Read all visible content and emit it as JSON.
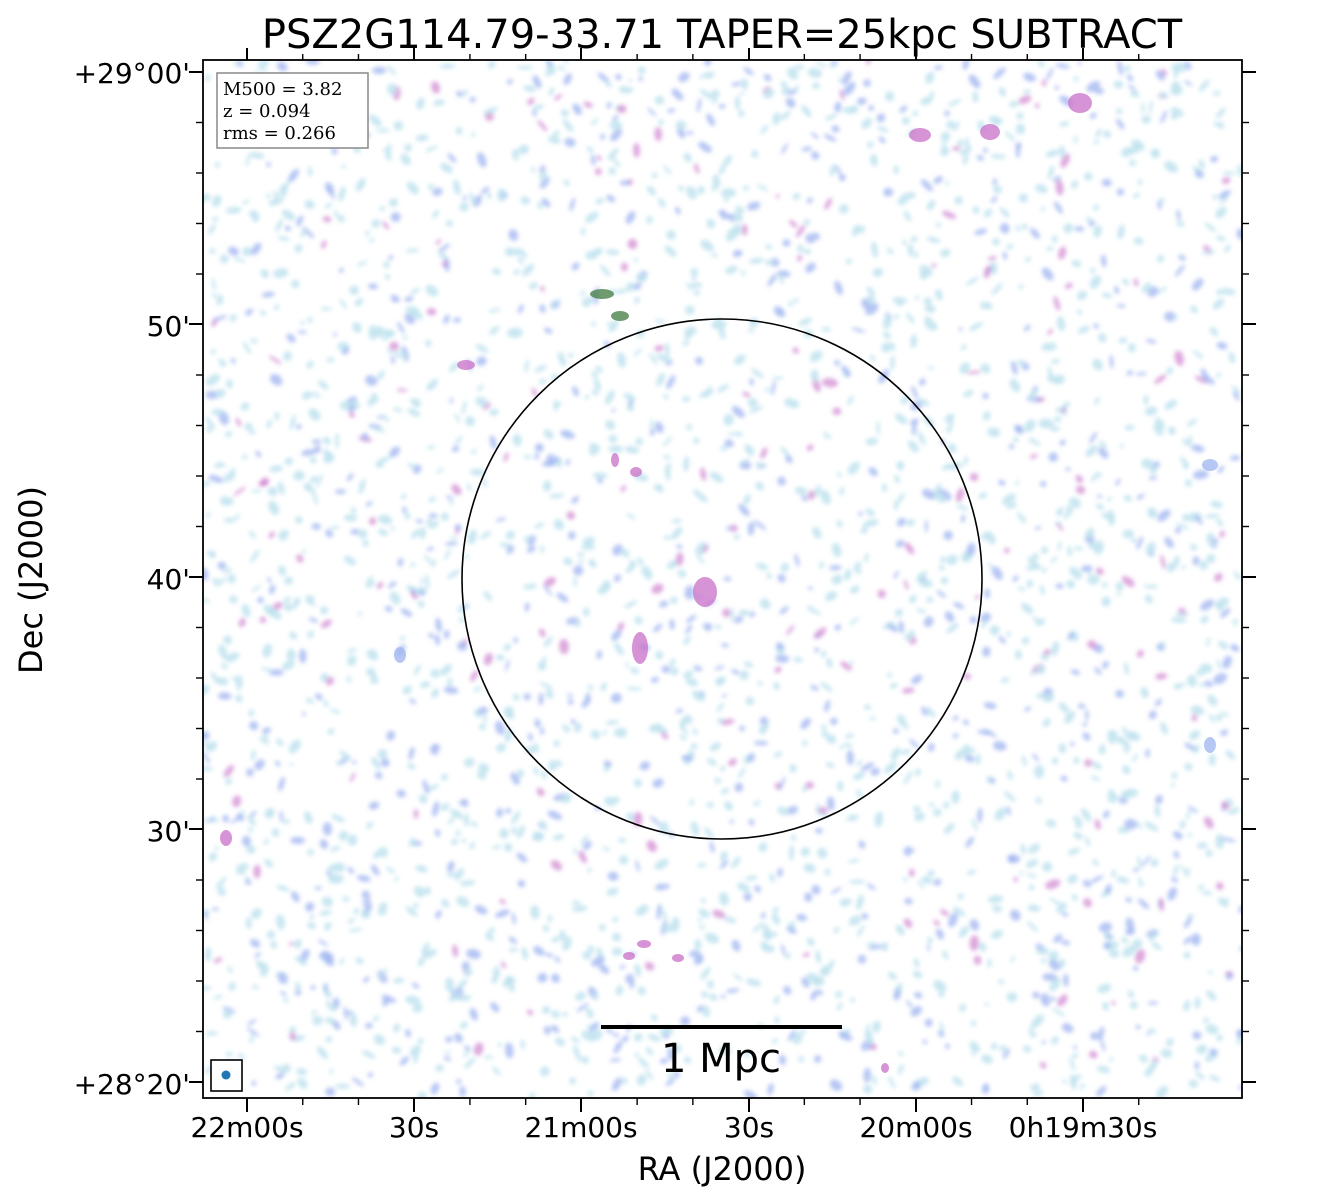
{
  "title": "PSZ2G114.79-33.71 TAPER=25kpc SUBTRACT",
  "axes": {
    "xlabel": "RA (J2000)",
    "ylabel": "Dec (J2000)",
    "x_ticks": [
      "22m00s",
      "30s",
      "21m00s",
      "30s",
      "20m00s",
      "0h19m30s"
    ],
    "y_ticks": [
      "+29°00'",
      "50'",
      "40'",
      "30'",
      "+28°20'"
    ]
  },
  "legend": {
    "lines": [
      "M500 = 3.82",
      "z = 0.094",
      "rms = 0.266"
    ]
  },
  "scalebar": {
    "label": "1 Mpc"
  },
  "colors": {
    "light_noise": "#bfe3ee",
    "mid_noise": "#9fb4f0",
    "emission": "#c86fc8",
    "peak": "#3f7a3f",
    "circle": "#000000",
    "beam": "#1f77b4"
  }
}
